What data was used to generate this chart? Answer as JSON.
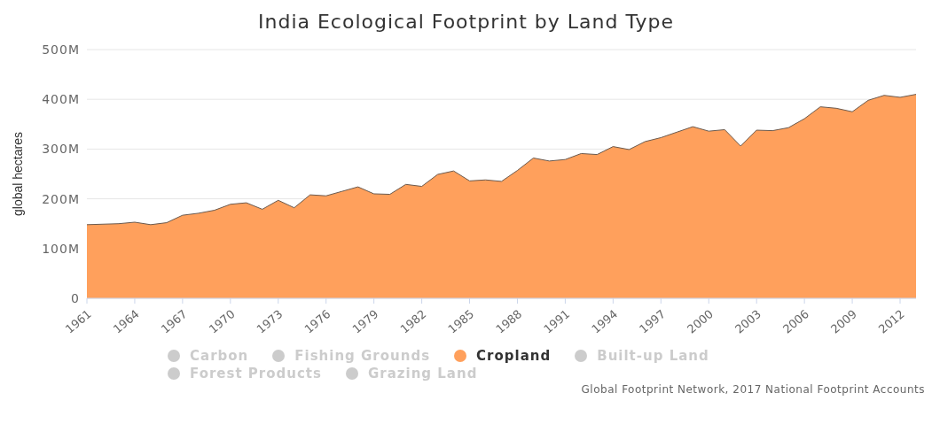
{
  "chart_data": {
    "type": "area",
    "title": "India Ecological Footprint by Land Type",
    "ylabel": "global hectares",
    "x": [
      1961,
      1962,
      1963,
      1964,
      1965,
      1966,
      1967,
      1968,
      1969,
      1970,
      1971,
      1972,
      1973,
      1974,
      1975,
      1976,
      1977,
      1978,
      1979,
      1980,
      1981,
      1982,
      1983,
      1984,
      1985,
      1986,
      1987,
      1988,
      1989,
      1990,
      1991,
      1992,
      1993,
      1994,
      1995,
      1996,
      1997,
      1998,
      1999,
      2000,
      2001,
      2002,
      2003,
      2004,
      2005,
      2006,
      2007,
      2008,
      2009,
      2010,
      2011,
      2012,
      2013
    ],
    "series": [
      {
        "name": "Carbon",
        "color": "#cccccc",
        "values": [
          null,
          null,
          null,
          null,
          null,
          null,
          null,
          null,
          null,
          null,
          null,
          null,
          null,
          null,
          null,
          null,
          null,
          null,
          null,
          null,
          null,
          null,
          null,
          null,
          null,
          null,
          null,
          null,
          null,
          null,
          null,
          null,
          null,
          null,
          null,
          null,
          null,
          null,
          null,
          null,
          null,
          null,
          null,
          null,
          null,
          null,
          null,
          null,
          null,
          null,
          null,
          null,
          null
        ]
      },
      {
        "name": "Fishing Grounds",
        "color": "#cccccc",
        "values": [
          null,
          null,
          null,
          null,
          null,
          null,
          null,
          null,
          null,
          null,
          null,
          null,
          null,
          null,
          null,
          null,
          null,
          null,
          null,
          null,
          null,
          null,
          null,
          null,
          null,
          null,
          null,
          null,
          null,
          null,
          null,
          null,
          null,
          null,
          null,
          null,
          null,
          null,
          null,
          null,
          null,
          null,
          null,
          null,
          null,
          null,
          null,
          null,
          null,
          null,
          null,
          null,
          null
        ]
      },
      {
        "name": "Cropland",
        "color": "#ffa05c",
        "values": [
          148000000,
          149000000,
          150000000,
          153000000,
          148000000,
          152000000,
          167000000,
          171000000,
          177000000,
          189000000,
          192000000,
          179000000,
          197000000,
          182000000,
          208000000,
          206000000,
          215000000,
          224000000,
          210000000,
          209000000,
          229000000,
          225000000,
          249000000,
          256000000,
          236000000,
          238000000,
          235000000,
          257000000,
          282000000,
          276000000,
          279000000,
          291000000,
          289000000,
          305000000,
          299000000,
          315000000,
          323000000,
          334000000,
          345000000,
          336000000,
          339000000,
          306000000,
          338000000,
          337000000,
          343000000,
          361000000,
          385000000,
          382000000,
          375000000,
          398000000,
          408000000,
          404000000,
          410000000
        ]
      },
      {
        "name": "Built-up Land",
        "color": "#cccccc",
        "values": [
          null,
          null,
          null,
          null,
          null,
          null,
          null,
          null,
          null,
          null,
          null,
          null,
          null,
          null,
          null,
          null,
          null,
          null,
          null,
          null,
          null,
          null,
          null,
          null,
          null,
          null,
          null,
          null,
          null,
          null,
          null,
          null,
          null,
          null,
          null,
          null,
          null,
          null,
          null,
          null,
          null,
          null,
          null,
          null,
          null,
          null,
          null,
          null,
          null,
          null,
          null,
          null,
          null
        ]
      },
      {
        "name": "Forest Products",
        "color": "#cccccc",
        "values": [
          null,
          null,
          null,
          null,
          null,
          null,
          null,
          null,
          null,
          null,
          null,
          null,
          null,
          null,
          null,
          null,
          null,
          null,
          null,
          null,
          null,
          null,
          null,
          null,
          null,
          null,
          null,
          null,
          null,
          null,
          null,
          null,
          null,
          null,
          null,
          null,
          null,
          null,
          null,
          null,
          null,
          null,
          null,
          null,
          null,
          null,
          null,
          null,
          null,
          null,
          null,
          null,
          null
        ]
      },
      {
        "name": "Grazing Land",
        "color": "#cccccc",
        "values": [
          null,
          null,
          null,
          null,
          null,
          null,
          null,
          null,
          null,
          null,
          null,
          null,
          null,
          null,
          null,
          null,
          null,
          null,
          null,
          null,
          null,
          null,
          null,
          null,
          null,
          null,
          null,
          null,
          null,
          null,
          null,
          null,
          null,
          null,
          null,
          null,
          null,
          null,
          null,
          null,
          null,
          null,
          null,
          null,
          null,
          null,
          null,
          null,
          null,
          null,
          null,
          null,
          null
        ]
      }
    ],
    "xlim": [
      1961,
      2013
    ],
    "xticks": [
      1961,
      1964,
      1967,
      1970,
      1973,
      1976,
      1979,
      1982,
      1985,
      1988,
      1991,
      1994,
      1997,
      2000,
      2003,
      2006,
      2009,
      2012
    ],
    "ylim": [
      0,
      500000000
    ],
    "yticks": [
      {
        "value": 0,
        "label": "0"
      },
      {
        "value": 100000000,
        "label": "100M"
      },
      {
        "value": 200000000,
        "label": "200M"
      },
      {
        "value": 300000000,
        "label": "300M"
      },
      {
        "value": 400000000,
        "label": "400M"
      },
      {
        "value": 500000000,
        "label": "500M"
      }
    ],
    "grid": "y",
    "legend": "bottom",
    "marker": "none",
    "annotations": [
      "Global Footprint Network, 2017 National Footprint Accounts"
    ]
  }
}
